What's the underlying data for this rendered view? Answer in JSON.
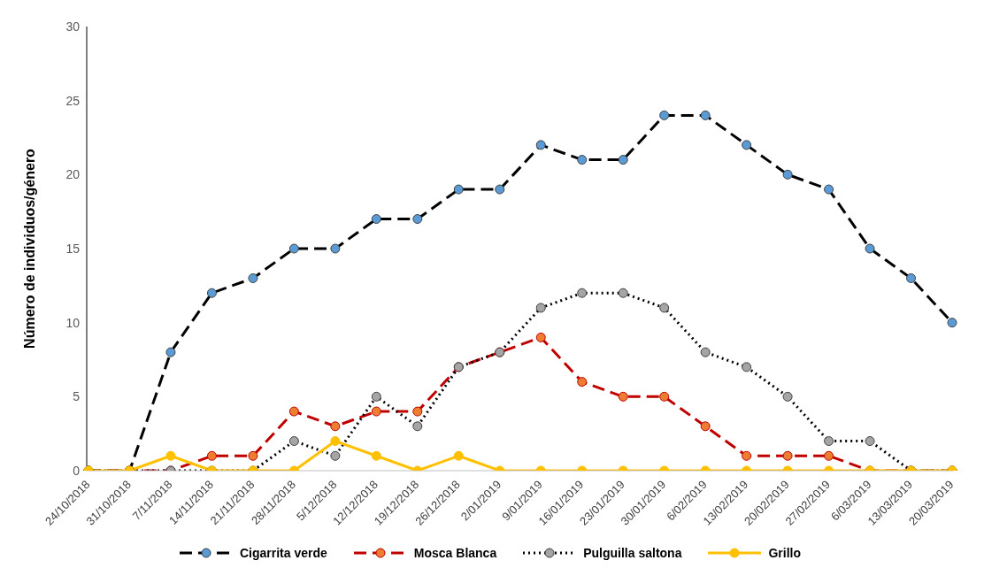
{
  "chart_data": {
    "type": "line",
    "ylabel": "Número de individuos/género",
    "categories": [
      "24/10/2018",
      "31/10/2018",
      "7/11/2018",
      "14/11/2018",
      "21/11/2018",
      "28/11/2018",
      "5/12/2018",
      "12/12/2018",
      "19/12/2018",
      "26/12/2018",
      "2/01/2019",
      "9/01/2019",
      "16/01/2019",
      "23/01/2019",
      "30/01/2019",
      "6/02/2019",
      "13/02/2019",
      "20/02/2019",
      "27/02/2019",
      "6/03/2019",
      "13/03/2019",
      "20/03/2019"
    ],
    "series": [
      {
        "name": "Cigarrita verde",
        "color": "#000000",
        "colors": [
          "#5b9bd5",
          "#5b9bd5",
          "#5b9bd5",
          "#5b9bd5",
          "#5b9bd5",
          "#5b9bd5",
          "#5b9bd5",
          "#5b9bd5",
          "#5b9bd5",
          "#5b9bd5",
          "#5b9bd5",
          "#5b9bd5",
          "#5b9bd5",
          "#5b9bd5",
          "#5b9bd5",
          "#5b9bd5",
          "#5b9bd5",
          "#5b9bd5",
          "#5b9bd5",
          "#5b9bd5",
          "#5b9bd5",
          "#5b9bd5"
        ],
        "line_style": "dashed",
        "values": [
          0,
          0,
          8,
          12,
          13,
          15,
          15,
          17,
          17,
          19,
          19,
          22,
          21,
          21,
          24,
          24,
          22,
          20,
          19,
          15,
          13,
          10
        ]
      },
      {
        "name": "Mosca Blanca",
        "color": "#c00000",
        "colors": [
          "#ed7d31",
          "#ed7d31",
          "#ed7d31",
          "#ed7d31",
          "#ed7d31",
          "#ed7d31",
          "#ed7d31",
          "#ed7d31",
          "#ed7d31",
          "#ed7d31",
          "#ed7d31",
          "#ed7d31",
          "#ed7d31",
          "#ed7d31",
          "#ed7d31",
          "#ed7d31",
          "#ed7d31",
          "#ed7d31",
          "#ed7d31",
          "#ed7d31",
          "#ed7d31",
          "#ed7d31"
        ],
        "line_style": "dashed",
        "values": [
          0,
          0,
          0,
          1,
          1,
          4,
          3,
          4,
          4,
          7,
          8,
          9,
          6,
          5,
          5,
          3,
          1,
          1,
          1,
          0,
          0,
          0
        ]
      },
      {
        "name": "Pulguilla saltona",
        "color": "#000000",
        "colors": [
          "#a5a5a5",
          "#a5a5a5",
          "#a5a5a5",
          "#a5a5a5",
          "#a5a5a5",
          "#a5a5a5",
          "#a5a5a5",
          "#a5a5a5",
          "#a5a5a5",
          "#a5a5a5",
          "#a5a5a5",
          "#a5a5a5",
          "#a5a5a5",
          "#a5a5a5",
          "#a5a5a5",
          "#a5a5a5",
          "#a5a5a5",
          "#a5a5a5",
          "#a5a5a5",
          "#a5a5a5",
          "#a5a5a5",
          "#a5a5a5"
        ],
        "line_style": "dotted",
        "values": [
          0,
          0,
          0,
          0,
          0,
          2,
          1,
          5,
          3,
          7,
          8,
          11,
          12,
          12,
          11,
          8,
          7,
          5,
          2,
          2,
          0,
          0
        ]
      },
      {
        "name": "Grillo",
        "color": "#ffc000",
        "line_style": "solid",
        "values": [
          0,
          0,
          1,
          0,
          0,
          0,
          2,
          1,
          0,
          1,
          0,
          0,
          0,
          0,
          0,
          0,
          0,
          0,
          0,
          0,
          0,
          0
        ]
      }
    ],
    "ylim": [
      0,
      30
    ],
    "yticks": [
      0,
      5,
      10,
      15,
      20,
      25,
      30
    ],
    "grid": false,
    "legend": "bottom",
    "marker": "circle"
  }
}
